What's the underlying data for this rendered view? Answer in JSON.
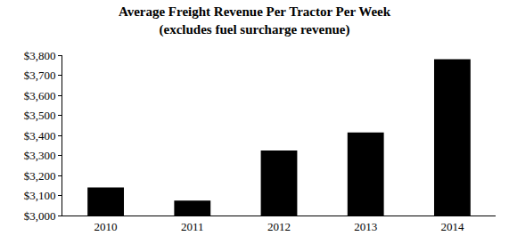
{
  "chart_data": {
    "type": "bar",
    "title": "Average Freight Revenue Per Tractor Per Week",
    "subtitle": "(excludes fuel surcharge revenue)",
    "categories": [
      "2010",
      "2011",
      "2012",
      "2013",
      "2014"
    ],
    "values": [
      3140,
      3075,
      3325,
      3415,
      3780
    ],
    "color": "#000000",
    "ylim": [
      3000,
      3800
    ],
    "yticks": [
      {
        "value": 3000,
        "label": "$3,000"
      },
      {
        "value": 3100,
        "label": "$3,100"
      },
      {
        "value": 3200,
        "label": "$3,200"
      },
      {
        "value": 3300,
        "label": "$3,300"
      },
      {
        "value": 3400,
        "label": "$3,400"
      },
      {
        "value": 3500,
        "label": "$3,500"
      },
      {
        "value": 3600,
        "label": "$3,600"
      },
      {
        "value": 3700,
        "label": "$3,700"
      },
      {
        "value": 3800,
        "label": "$3,800"
      }
    ],
    "grid": false
  }
}
